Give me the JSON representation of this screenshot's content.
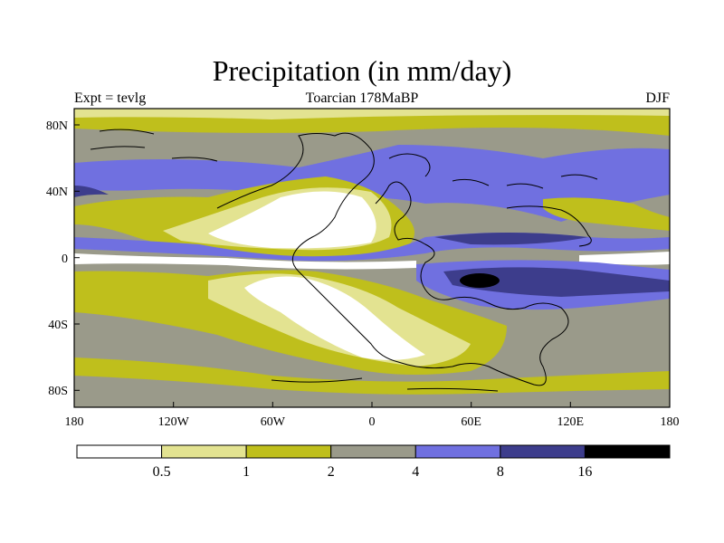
{
  "title": "Precipitation (in mm/day)",
  "left_label": "Expt = tevlg",
  "center_label": "Toarcian 178MaBP",
  "right_label": "DJF",
  "lon_ticks": [
    "180",
    "120W",
    "60W",
    "0",
    "60E",
    "120E",
    "180"
  ],
  "lat_ticks": [
    "80N",
    "40N",
    "0",
    "40S",
    "80S"
  ],
  "colorbar": {
    "labels": [
      "0.5",
      "1",
      "2",
      "4",
      "8",
      "16"
    ],
    "colors": [
      "#ffffff",
      "#e3e391",
      "#bfbf1c",
      "#9a9a8a",
      "#7070e0",
      "#3d3d8c",
      "#000000"
    ]
  }
}
